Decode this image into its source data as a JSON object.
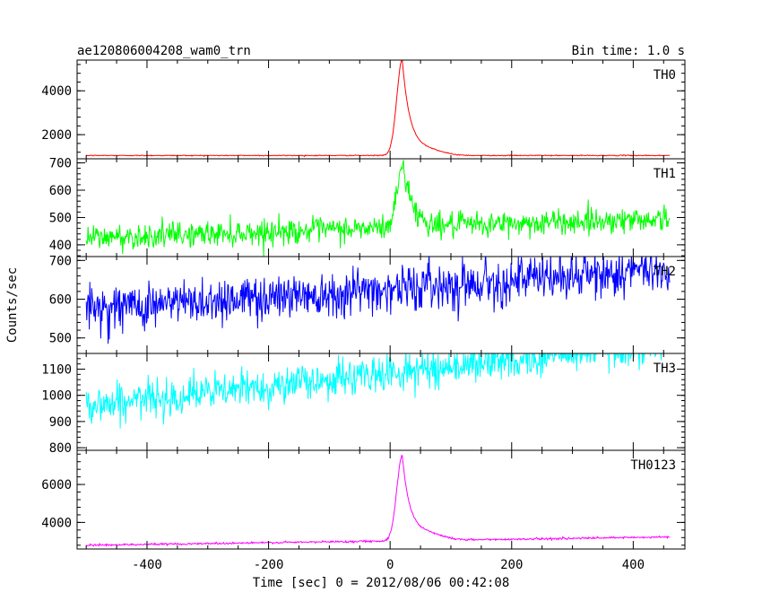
{
  "chart_data": {
    "type": "line",
    "title": "ae120806004208_wam0_trn",
    "subtitle": "Bin time: 1.0 s",
    "xlabel": "Time [sec] 0 = 2012/08/06 00:42:08",
    "ylabel": "Counts/sec",
    "xlim": [
      -515,
      485
    ],
    "xticks": [
      -400,
      -200,
      0,
      200,
      400
    ],
    "grid": false,
    "panels": [
      {
        "name": "TH0",
        "color": "#ff0000",
        "ylim": [
          900,
          5400
        ],
        "yticks": [
          2000,
          4000
        ],
        "baseline": 1050,
        "trend": 0,
        "noise": 10,
        "peak": 4300,
        "peak_t": 20,
        "rise": 9,
        "decay": 13,
        "tail": 250,
        "tail_t": 60,
        "tail_w": 25
      },
      {
        "name": "TH1",
        "color": "#00ff00",
        "ylim": [
          357,
          715
        ],
        "yticks": [
          400,
          500,
          600,
          700
        ],
        "baseline": 425,
        "trend": 0.075,
        "noise": 23,
        "peak": 230,
        "peak_t": 22,
        "rise": 10,
        "decay": 15,
        "tail": 0,
        "tail_t": 60,
        "tail_w": 25
      },
      {
        "name": "TH2",
        "color": "#0000ff",
        "ylim": [
          460,
          710
        ],
        "yticks": [
          500,
          600,
          700
        ],
        "baseline": 575,
        "trend": 0.105,
        "noise": 30,
        "peak": 0,
        "peak_t": 20,
        "rise": 10,
        "decay": 15,
        "tail": 0,
        "tail_t": 60,
        "tail_w": 25
      },
      {
        "name": "TH3",
        "color": "#00ffff",
        "ylim": [
          790,
          1160
        ],
        "yticks": [
          800,
          900,
          1000,
          1100
        ],
        "baseline": 960,
        "trend": 0.25,
        "noise": 35,
        "peak": 0,
        "peak_t": 20,
        "rise": 10,
        "decay": 15,
        "tail": 0,
        "tail_t": 60,
        "tail_w": 25
      },
      {
        "name": "TH0123",
        "color": "#ff00ff",
        "ylim": [
          2600,
          7800
        ],
        "yticks": [
          4000,
          6000
        ],
        "baseline": 2800,
        "trend": 0.45,
        "noise": 25,
        "peak": 4400,
        "peak_t": 20,
        "rise": 9,
        "decay": 13,
        "tail": 350,
        "tail_t": 60,
        "tail_w": 25
      }
    ]
  }
}
